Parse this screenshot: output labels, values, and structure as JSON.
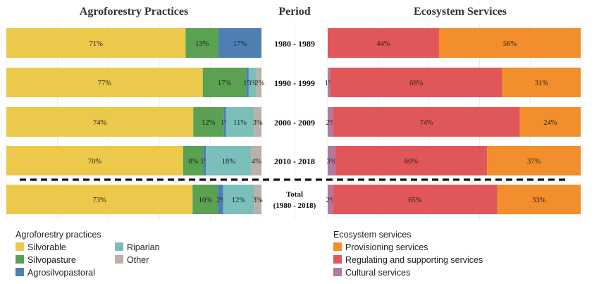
{
  "chart_data": {
    "type": "bar",
    "orientation": "horizontal",
    "stacked": true,
    "normalized": true,
    "periods": [
      "1980 - 1989",
      "1990 - 1999",
      "2000 - 2009",
      "2010 - 2018"
    ],
    "total_label": [
      "Total",
      "(1980 - 2018)"
    ],
    "panels": [
      {
        "title": "Agroforestry Practices",
        "legend_title": "Agroforestry practices",
        "series": [
          {
            "name": "Silvorable",
            "color": "#ecc94b",
            "values": [
              71,
              77,
              74,
              70,
              73
            ]
          },
          {
            "name": "Silvopasture",
            "color": "#5aa152",
            "values": [
              13,
              17,
              12,
              8,
              10
            ]
          },
          {
            "name": "Agrosilvopastoral",
            "color": "#4e7fb2",
            "values": [
              17,
              1,
              1,
              1,
              2
            ]
          },
          {
            "name": "Riparian",
            "color": "#7abfba",
            "values": [
              0,
              3,
              11,
              18,
              12
            ]
          },
          {
            "name": "Other",
            "color": "#bcb0ab",
            "values": [
              0,
              2,
              3,
              4,
              3
            ]
          }
        ],
        "value_labels": [
          [
            "71%",
            "13%",
            "17%",
            "",
            ""
          ],
          [
            "77%",
            "17%",
            "1%",
            "3%",
            "2%"
          ],
          [
            "74%",
            "12%",
            "1%",
            "11%",
            "3%"
          ],
          [
            "70%",
            "8%",
            "1%",
            "18%",
            "4%"
          ],
          [
            "73%",
            "10%",
            "2%",
            "12%",
            "3%"
          ]
        ]
      },
      {
        "title": "Ecosystem Services",
        "legend_title": "Ecosystem services",
        "series": [
          {
            "name": "Cultural services",
            "color": "#b07aa1",
            "values": [
              0,
              1,
              2,
              3,
              2
            ]
          },
          {
            "name": "Regulating and supporting services",
            "color": "#e15759",
            "values": [
              44,
              68,
              74,
              60,
              65
            ]
          },
          {
            "name": "Provisioning services",
            "color": "#f28e2b",
            "values": [
              56,
              31,
              24,
              37,
              33
            ]
          }
        ],
        "legend_order": [
          "Provisioning services",
          "Regulating and supporting services",
          "Cultural services"
        ],
        "value_labels": [
          [
            "",
            "44%",
            "56%"
          ],
          [
            "1%",
            "68%",
            "31%"
          ],
          [
            "2%",
            "74%",
            "24%"
          ],
          [
            "3%",
            "60%",
            "37%"
          ],
          [
            "2%",
            "65%",
            "33%"
          ]
        ]
      }
    ],
    "period_header": "Period"
  }
}
